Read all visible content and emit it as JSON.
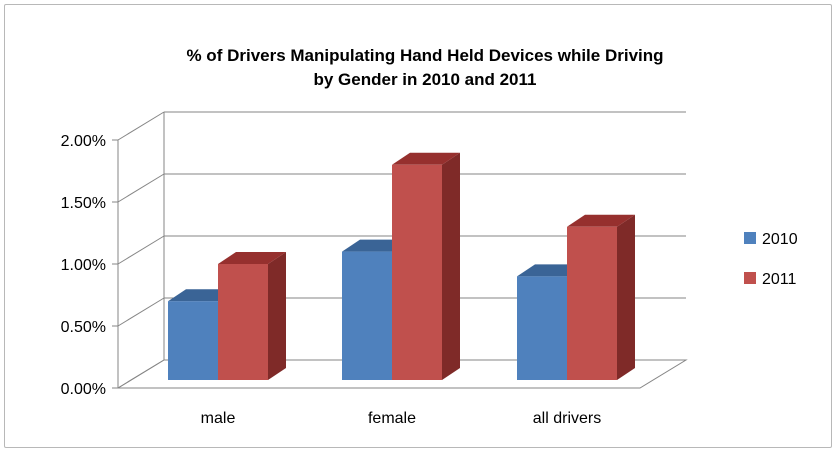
{
  "chart_data": {
    "type": "bar",
    "title": "% of Drivers Manipulating Hand Held Devices while Driving\nby Gender  in 2010 and 2011",
    "categories": [
      "male",
      "female",
      "all drivers"
    ],
    "series": [
      {
        "name": "2010",
        "values": [
          0.7,
          1.1,
          0.9
        ]
      },
      {
        "name": "2011",
        "values": [
          1.0,
          1.8,
          1.3
        ]
      }
    ],
    "y_ticks": [
      "0.00%",
      "0.50%",
      "1.00%",
      "1.50%",
      "2.00%"
    ],
    "ylim": [
      0,
      2.0
    ],
    "legend_position": "right",
    "grid": true,
    "colors": {
      "2010": "#4f81bd",
      "2010_top": "#3a6496",
      "2010_side": "#2f5380",
      "2011": "#c0504d",
      "2011_top": "#96302e",
      "2011_side": "#7f2a28",
      "grid": "#868686"
    }
  }
}
